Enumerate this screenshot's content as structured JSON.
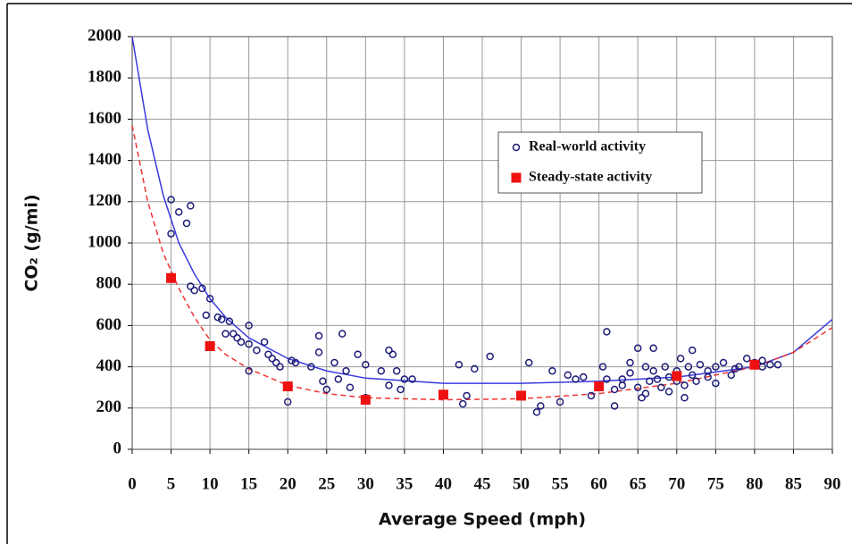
{
  "chart_data": {
    "type": "scatter",
    "xlabel": "Average Speed (mph)",
    "ylabel": "CO₂ (g/mi)",
    "xlim": [
      0,
      90
    ],
    "ylim": [
      0,
      2000
    ],
    "xticks": [
      0,
      5,
      10,
      15,
      20,
      25,
      30,
      35,
      40,
      45,
      50,
      55,
      60,
      65,
      70,
      75,
      80,
      85,
      90
    ],
    "yticks": [
      0,
      200,
      400,
      600,
      800,
      1000,
      1200,
      1400,
      1600,
      1800,
      2000
    ],
    "grid": true,
    "series": [
      {
        "name": "Real-world activity",
        "color": "#1c1c78",
        "marker": "circle",
        "x": [
          5,
          5,
          6,
          7,
          7.5,
          7.5,
          8,
          9,
          9.5,
          10,
          11,
          11.5,
          12,
          12.5,
          13,
          13.5,
          14,
          15,
          15,
          15,
          16,
          17,
          17.5,
          18,
          18.5,
          19,
          20,
          20.5,
          21,
          23,
          24,
          24,
          24.5,
          25,
          26,
          26.5,
          27,
          27.5,
          28,
          29,
          30,
          30,
          32,
          33,
          33,
          33.5,
          34,
          34.5,
          35,
          36,
          42,
          42.5,
          43,
          44,
          46,
          51,
          52,
          52.5,
          54,
          55,
          56,
          57,
          58,
          59,
          60,
          60.5,
          61,
          61,
          62,
          62,
          63,
          63,
          64,
          64,
          65,
          65,
          65.5,
          66,
          66,
          66.5,
          67,
          67,
          67.5,
          68,
          68.5,
          69,
          69,
          70,
          70,
          70.5,
          71,
          71,
          71.5,
          72,
          72,
          72.5,
          73,
          74,
          74,
          75,
          75,
          76,
          77,
          77.5,
          78,
          79,
          80,
          81,
          81,
          82,
          83
        ],
        "values": [
          1210,
          1045,
          1150,
          1095,
          1180,
          790,
          770,
          780,
          650,
          730,
          640,
          630,
          560,
          620,
          560,
          540,
          520,
          600,
          510,
          380,
          480,
          520,
          460,
          440,
          420,
          400,
          230,
          430,
          420,
          400,
          470,
          550,
          330,
          290,
          420,
          340,
          560,
          380,
          300,
          460,
          410,
          250,
          380,
          310,
          480,
          460,
          380,
          290,
          340,
          340,
          410,
          220,
          260,
          390,
          450,
          420,
          180,
          210,
          380,
          230,
          360,
          340,
          350,
          260,
          300,
          400,
          570,
          340,
          210,
          290,
          340,
          310,
          370,
          420,
          490,
          300,
          250,
          270,
          400,
          330,
          490,
          380,
          340,
          300,
          400,
          350,
          280,
          380,
          330,
          440,
          250,
          310,
          400,
          480,
          360,
          330,
          410,
          380,
          350,
          400,
          320,
          420,
          360,
          390,
          400,
          440,
          420,
          430,
          400,
          410,
          410
        ]
      },
      {
        "name": "Steady-state activity",
        "color": "#ee1111",
        "marker": "square",
        "x": [
          5,
          10,
          20,
          30,
          40,
          50,
          60,
          70,
          80
        ],
        "values": [
          830,
          500,
          305,
          240,
          265,
          260,
          305,
          355,
          410
        ]
      }
    ],
    "curves": [
      {
        "color": "#3a3ae0",
        "dash": "none",
        "x": [
          0,
          2,
          4,
          6,
          8,
          10,
          12,
          15,
          20,
          25,
          30,
          40,
          50,
          60,
          70,
          80,
          85,
          90
        ],
        "values": [
          2000,
          1550,
          1230,
          1000,
          850,
          730,
          640,
          540,
          440,
          380,
          345,
          320,
          320,
          330,
          350,
          400,
          470,
          630
        ]
      },
      {
        "color": "#ee3333",
        "dash": "6 4",
        "x": [
          0,
          2,
          4,
          6,
          8,
          10,
          12,
          15,
          20,
          25,
          30,
          40,
          50,
          60,
          70,
          80,
          85,
          90
        ],
        "values": [
          1570,
          1200,
          950,
          780,
          640,
          530,
          460,
          390,
          310,
          270,
          250,
          240,
          245,
          270,
          320,
          400,
          470,
          590
        ]
      }
    ]
  }
}
